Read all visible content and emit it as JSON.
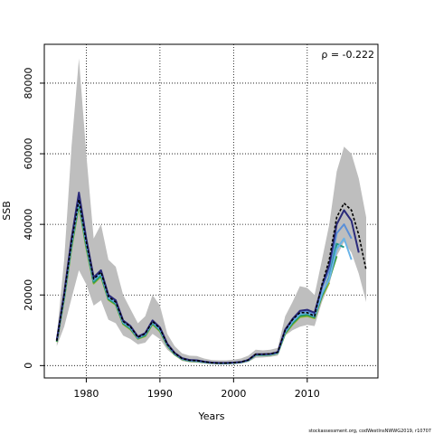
{
  "chart_data": {
    "type": "line",
    "title": "",
    "xlabel": "Years",
    "ylabel": "SSB",
    "xlim": [
      1974.3,
      2019.6
    ],
    "ylim": [
      -3500,
      91000
    ],
    "x_ticks": [
      1980,
      1990,
      2000,
      2010
    ],
    "y_ticks": [
      0,
      20000,
      40000,
      60000,
      80000
    ],
    "x_tick_labels": [
      "1980",
      "1990",
      "2000",
      "2010"
    ],
    "y_tick_labels": [
      "0",
      "20000",
      "40000",
      "60000",
      "80000"
    ],
    "grid": true,
    "annotation": "ρ = -0.222",
    "footer": "stockassessment.org, codWestInsNWWG2019, r10707",
    "band_color": "#bebebe",
    "band": {
      "x": [
        1976,
        1977,
        1978,
        1979,
        1980,
        1981,
        1982,
        1983,
        1984,
        1985,
        1986,
        1987,
        1988,
        1989,
        1990,
        1991,
        1992,
        1993,
        1994,
        1995,
        1996,
        1997,
        1998,
        1999,
        2000,
        2001,
        2002,
        2003,
        2004,
        2005,
        2006,
        2007,
        2008,
        2009,
        2010,
        2011,
        2012,
        2013,
        2014,
        2015,
        2016,
        2017,
        2018
      ],
      "lower": [
        5500,
        11000,
        19000,
        27000,
        23000,
        17000,
        18500,
        13000,
        12000,
        8500,
        7500,
        6000,
        6500,
        9000,
        7500,
        4500,
        2800,
        1300,
        900,
        800,
        600,
        400,
        350,
        350,
        500,
        600,
        1000,
        2200,
        2300,
        2500,
        2800,
        8500,
        10000,
        11000,
        11500,
        11200,
        18000,
        23000,
        31000,
        35000,
        32000,
        26000,
        18000
      ],
      "upper": [
        8500,
        30000,
        62000,
        87000,
        60000,
        36000,
        40000,
        30000,
        28000,
        20000,
        16000,
        12000,
        14000,
        20000,
        17000,
        9000,
        5500,
        3500,
        2800,
        2700,
        2000,
        1600,
        1500,
        1500,
        1700,
        2000,
        2800,
        4500,
        4300,
        4500,
        5000,
        14000,
        18000,
        22500,
        22000,
        20000,
        30000,
        40000,
        55000,
        62000,
        60000,
        53000,
        42000
      ]
    },
    "series": [
      {
        "color": "#000000",
        "dashed": true,
        "x": [
          1976,
          1977,
          1978,
          1979,
          1980,
          1981,
          1982,
          1983,
          1984,
          1985,
          1986,
          1987,
          1988,
          1989,
          1990,
          1991,
          1992,
          1993,
          1994,
          1995,
          1996,
          1997,
          1998,
          1999,
          2000,
          2001,
          2002,
          2003,
          2004,
          2005,
          2006,
          2007,
          2008,
          2009,
          2010,
          2011,
          2012,
          2013,
          2014,
          2015,
          2016,
          2017,
          2018
        ],
        "y": [
          7000,
          20000,
          35000,
          47000,
          35000,
          24500,
          26500,
          19500,
          18000,
          12500,
          11000,
          8000,
          9000,
          12500,
          10500,
          6000,
          3500,
          2000,
          1500,
          1400,
          1100,
          800,
          700,
          700,
          800,
          1000,
          1600,
          3200,
          3200,
          3300,
          3800,
          10000,
          13000,
          15000,
          15000,
          14000,
          23000,
          30000,
          42000,
          46000,
          44000,
          37000,
          27000
        ]
      },
      {
        "color": "#2a2a7a",
        "dashed": false,
        "x": [
          1976,
          1977,
          1978,
          1979,
          1980,
          1981,
          1982,
          1983,
          1984,
          1985,
          1986,
          1987,
          1988,
          1989,
          1990,
          1991,
          1992,
          1993,
          1994,
          1995,
          1996,
          1997,
          1998,
          1999,
          2000,
          2001,
          2002,
          2003,
          2004,
          2005,
          2006,
          2007,
          2008,
          2009,
          2010,
          2011,
          2012,
          2013,
          2014,
          2015,
          2016,
          2017
        ],
        "y": [
          7200,
          20500,
          36000,
          49000,
          36000,
          25000,
          27000,
          20000,
          18500,
          12800,
          11200,
          8200,
          9200,
          12800,
          10800,
          6200,
          3600,
          2100,
          1600,
          1500,
          1100,
          850,
          750,
          750,
          850,
          1000,
          1600,
          3200,
          3200,
          3300,
          3800,
          10200,
          13200,
          15500,
          15800,
          15000,
          22500,
          28500,
          40000,
          44000,
          41000,
          32000
        ]
      },
      {
        "color": "#5a8fd8",
        "dashed": false,
        "x": [
          1976,
          1977,
          1978,
          1979,
          1980,
          1981,
          1982,
          1983,
          1984,
          1985,
          1986,
          1987,
          1988,
          1989,
          1990,
          1991,
          1992,
          1993,
          1994,
          1995,
          1996,
          1997,
          1998,
          1999,
          2000,
          2001,
          2002,
          2003,
          2004,
          2005,
          2006,
          2007,
          2008,
          2009,
          2010,
          2011,
          2012,
          2013,
          2014,
          2015,
          2016
        ],
        "y": [
          7100,
          20200,
          35500,
          48000,
          35500,
          24700,
          26700,
          19700,
          18200,
          12600,
          11000,
          8100,
          9100,
          12600,
          10600,
          6100,
          3500,
          2050,
          1550,
          1450,
          1100,
          820,
          720,
          720,
          820,
          980,
          1560,
          3150,
          3150,
          3250,
          3750,
          10000,
          13000,
          15200,
          15500,
          14600,
          22000,
          27000,
          37500,
          40000,
          36000
        ]
      },
      {
        "color": "#6ab4e8",
        "dashed": false,
        "x": [
          1976,
          1977,
          1978,
          1979,
          1980,
          1981,
          1982,
          1983,
          1984,
          1985,
          1986,
          1987,
          1988,
          1989,
          1990,
          1991,
          1992,
          1993,
          1994,
          1995,
          1996,
          1997,
          1998,
          1999,
          2000,
          2001,
          2002,
          2003,
          2004,
          2005,
          2006,
          2007,
          2008,
          2009,
          2010,
          2011,
          2012,
          2013,
          2014,
          2015,
          2016
        ],
        "y": [
          7000,
          19800,
          34800,
          47000,
          34800,
          24200,
          26200,
          19300,
          17900,
          12300,
          10800,
          7900,
          8900,
          12300,
          10300,
          5900,
          3400,
          1950,
          1450,
          1350,
          1000,
          780,
          680,
          680,
          780,
          940,
          1500,
          3050,
          3050,
          3150,
          3650,
          9600,
          12500,
          14600,
          14900,
          14000,
          20500,
          24500,
          33000,
          36000,
          30000
        ]
      },
      {
        "color": "#1e9a8a",
        "dashed": false,
        "x": [
          1976,
          1977,
          1978,
          1979,
          1980,
          1981,
          1982,
          1983,
          1984,
          1985,
          1986,
          1987,
          1988,
          1989,
          1990,
          1991,
          1992,
          1993,
          1994,
          1995,
          1996,
          1997,
          1998,
          1999,
          2000,
          2001,
          2002,
          2003,
          2004,
          2005,
          2006,
          2007,
          2008,
          2009,
          2010,
          2011,
          2012,
          2013,
          2014,
          2015
        ],
        "y": [
          6900,
          19500,
          34300,
          46500,
          34300,
          23800,
          25800,
          19000,
          17600,
          12100,
          10600,
          7800,
          8700,
          12100,
          10100,
          5800,
          3300,
          1900,
          1400,
          1300,
          980,
          760,
          660,
          660,
          760,
          920,
          1480,
          3000,
          3000,
          3100,
          3600,
          9400,
          12200,
          14300,
          14600,
          13800,
          20000,
          25000,
          34500,
          33500
        ]
      },
      {
        "color": "#3c9a3c",
        "dashed": false,
        "x": [
          1976,
          1977,
          1978,
          1979,
          1980,
          1981,
          1982,
          1983,
          1984,
          1985,
          1986,
          1987,
          1988,
          1989,
          1990,
          1991,
          1992,
          1993,
          1994,
          1995,
          1996,
          1997,
          1998,
          1999,
          2000,
          2001,
          2002,
          2003,
          2004,
          2005,
          2006,
          2007,
          2008,
          2009,
          2010,
          2011,
          2012,
          2013,
          2014
        ],
        "y": [
          6800,
          19200,
          33800,
          46000,
          33800,
          23500,
          25500,
          18800,
          17400,
          11900,
          10400,
          7700,
          8500,
          11900,
          9900,
          5700,
          3200,
          1850,
          1350,
          1250,
          960,
          740,
          640,
          640,
          740,
          900,
          1450,
          2950,
          2950,
          3050,
          3550,
          9200,
          11900,
          14000,
          14300,
          13600,
          19800,
          24500,
          31000
        ]
      },
      {
        "color": "#9ab838",
        "dashed": false,
        "x": [
          1976,
          1977,
          1978,
          1979,
          1980,
          1981,
          1982,
          1983,
          1984,
          1985,
          1986,
          1987,
          1988,
          1989,
          1990,
          1991,
          1992,
          1993,
          1994,
          1995,
          1996,
          1997,
          1998,
          1999,
          2000,
          2001,
          2002,
          2003,
          2004,
          2005,
          2006,
          2007,
          2008,
          2009,
          2010,
          2011,
          2012,
          2013
        ],
        "y": [
          6700,
          18900,
          33300,
          45500,
          33300,
          23200,
          25200,
          18600,
          17200,
          11700,
          10200,
          7600,
          8300,
          11700,
          9700,
          5600,
          3100,
          1800,
          1300,
          1200,
          940,
          720,
          620,
          620,
          720,
          880,
          1420,
          2900,
          2900,
          3000,
          3500,
          9000,
          11600,
          13700,
          14000,
          13400,
          19500,
          23500
        ]
      }
    ]
  }
}
